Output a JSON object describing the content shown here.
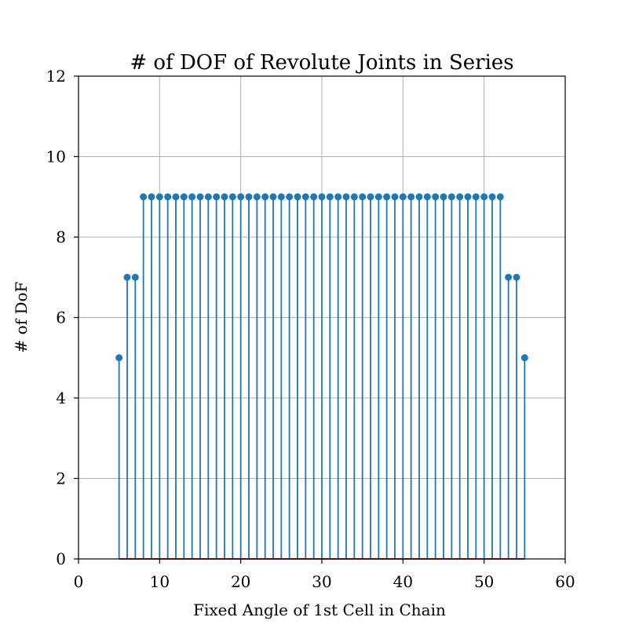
{
  "chart_data": {
    "type": "stem",
    "title": "# of DOF of Revolute Joints in Series",
    "xlabel": "Fixed Angle of 1st Cell in Chain",
    "ylabel": "# of DoF",
    "xlim": [
      0,
      60
    ],
    "ylim": [
      0,
      12
    ],
    "xticks": [
      "0",
      "10",
      "20",
      "30",
      "40",
      "50",
      "60"
    ],
    "yticks": [
      "0",
      "2",
      "4",
      "6",
      "8",
      "10",
      "12"
    ],
    "grid": true,
    "x": [
      5,
      6,
      7,
      8,
      9,
      10,
      11,
      12,
      13,
      14,
      15,
      16,
      17,
      18,
      19,
      20,
      21,
      22,
      23,
      24,
      25,
      26,
      27,
      28,
      29,
      30,
      31,
      32,
      33,
      34,
      35,
      36,
      37,
      38,
      39,
      40,
      41,
      42,
      43,
      44,
      45,
      46,
      47,
      48,
      49,
      50,
      51,
      52,
      53,
      54,
      55
    ],
    "y": [
      5,
      7,
      7,
      9,
      9,
      9,
      9,
      9,
      9,
      9,
      9,
      9,
      9,
      9,
      9,
      9,
      9,
      9,
      9,
      9,
      9,
      9,
      9,
      9,
      9,
      9,
      9,
      9,
      9,
      9,
      9,
      9,
      9,
      9,
      9,
      9,
      9,
      9,
      9,
      9,
      9,
      9,
      9,
      9,
      9,
      9,
      9,
      9,
      7,
      7,
      5
    ],
    "colors": {
      "stem": "#1f77b4",
      "marker": "#1f77b4",
      "baseline": "#d62728",
      "grid": "#b0b0b0",
      "axis": "#000000"
    }
  }
}
